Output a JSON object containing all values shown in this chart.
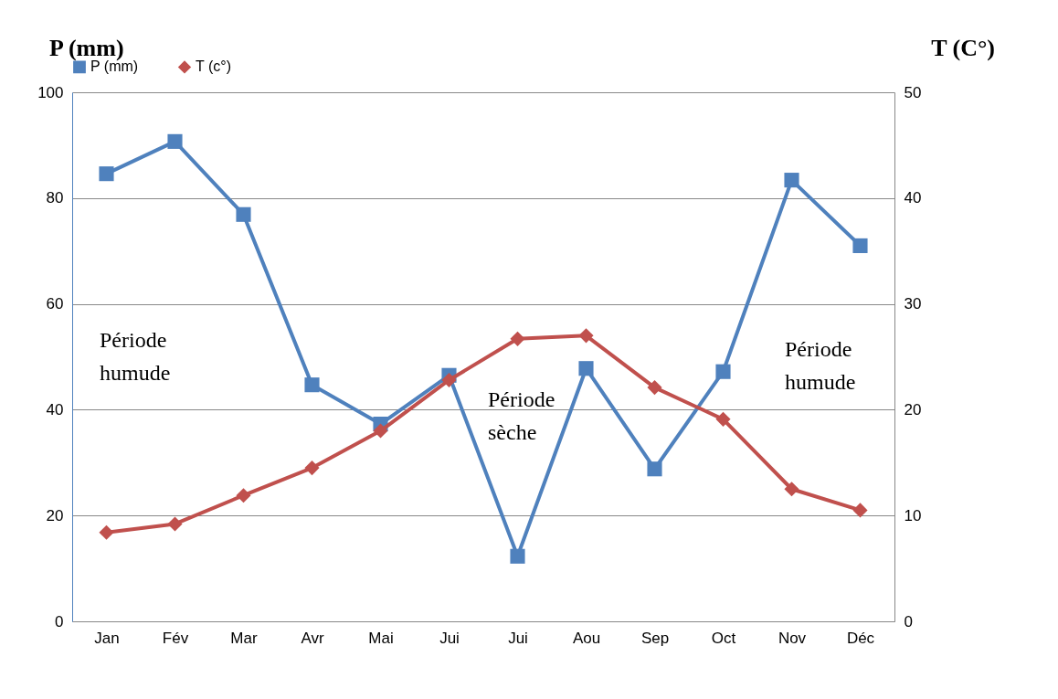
{
  "chart_data": {
    "type": "line",
    "categories": [
      "Jan",
      "Fév",
      "Mar",
      "Avr",
      "Mai",
      "Jui",
      "Jui",
      "Aou",
      "Sep",
      "Oct",
      "Nov",
      "Déc"
    ],
    "ylabel": "P  (mm)",
    "y2label": "T (C°)",
    "ylim": [
      0,
      100
    ],
    "yticks": [
      0,
      20,
      40,
      60,
      80,
      100
    ],
    "y2lim": [
      0,
      50
    ],
    "y2ticks": [
      0,
      10,
      20,
      30,
      40,
      50
    ],
    "grid": "y",
    "legend": "top",
    "annotations": [
      "Période humude",
      "Période sèche",
      "Période humude"
    ],
    "series": [
      {
        "name": "P (mm)",
        "color": "#4f81bd",
        "marker": "square",
        "values": [
          84.6,
          90.7,
          76.9,
          44.7,
          37.3,
          46.5,
          12.3,
          47.8,
          28.8,
          47.2,
          83.4,
          71.0
        ]
      },
      {
        "name": "T (c°)",
        "color": "#c0504d",
        "marker": "diamond",
        "axis": "y2",
        "values": [
          8.4,
          9.2,
          11.9,
          14.5,
          18.0,
          22.8,
          26.7,
          27.0,
          22.1,
          19.1,
          12.5,
          10.5
        ]
      }
    ]
  }
}
